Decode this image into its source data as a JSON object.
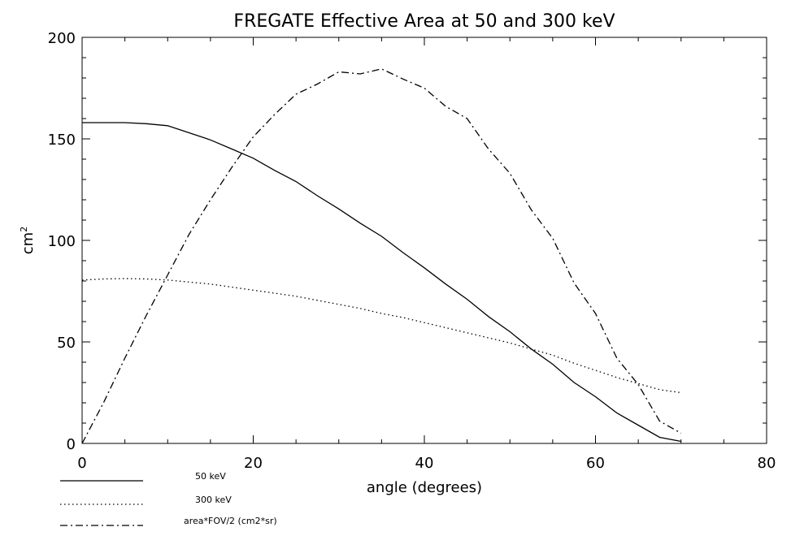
{
  "chart_data": {
    "type": "line",
    "title": "FREGATE Effective Area at 50 and 300 keV",
    "xlabel": "angle (degrees)",
    "ylabel": "cm",
    "ylabel_superscript": "2",
    "xlim": [
      0,
      80
    ],
    "ylim": [
      0,
      200
    ],
    "x_ticks": [
      "0",
      "20",
      "40",
      "60",
      "80"
    ],
    "y_ticks": [
      "0",
      "50",
      "100",
      "150",
      "200"
    ],
    "grid": false,
    "legend_position": "bottom-left, below plot",
    "series": [
      {
        "name": "50 keV",
        "line_style": "solid",
        "x": [
          0,
          2.5,
          5,
          7.5,
          10,
          12.5,
          15,
          17.5,
          20,
          22.5,
          25,
          27.5,
          30,
          32.5,
          35,
          37.5,
          40,
          42.5,
          45,
          47.5,
          50,
          52.5,
          55,
          57.5,
          60,
          62.5,
          65,
          67.5,
          70
        ],
        "y": [
          158,
          158,
          158,
          157.5,
          156.5,
          153,
          149.5,
          145,
          140.5,
          134.5,
          129,
          122,
          115.5,
          108.5,
          102,
          94,
          86.5,
          78.5,
          71,
          62.5,
          55,
          46.5,
          39,
          30,
          23,
          15,
          9,
          3,
          1
        ]
      },
      {
        "name": "300 keV",
        "line_style": "dotted",
        "x": [
          0,
          2.5,
          5,
          7.5,
          10,
          12.5,
          15,
          17.5,
          20,
          22.5,
          25,
          27.5,
          30,
          32.5,
          35,
          37.5,
          40,
          42.5,
          45,
          47.5,
          50,
          52.5,
          55,
          57.5,
          60,
          62.5,
          65,
          67.5,
          70
        ],
        "y": [
          80.5,
          81,
          81.2,
          81,
          80.5,
          79.5,
          78.5,
          77,
          75.5,
          74,
          72.5,
          70.5,
          68.5,
          66.5,
          64,
          62,
          59.5,
          57,
          54.5,
          52,
          49.5,
          46.5,
          43.5,
          39.5,
          36,
          32.5,
          29.5,
          26.5,
          25
        ]
      },
      {
        "name": "area*FOV/2 (cm2*sr)",
        "line_style": "dashdot",
        "x": [
          0,
          2.5,
          5,
          7.5,
          10,
          12.5,
          15,
          17.5,
          20,
          22.5,
          25,
          27.5,
          30,
          32.5,
          35,
          37.5,
          40,
          42.5,
          45,
          47.5,
          50,
          52.5,
          55,
          57.5,
          60,
          62.5,
          65,
          67.5,
          70
        ],
        "y": [
          0,
          20,
          42,
          63,
          83,
          103,
          120,
          136,
          151,
          162,
          172,
          177,
          183,
          182,
          184.5,
          179.5,
          175,
          166,
          160,
          145,
          133,
          115,
          101,
          79,
          64,
          42,
          29,
          11,
          5
        ]
      }
    ]
  }
}
